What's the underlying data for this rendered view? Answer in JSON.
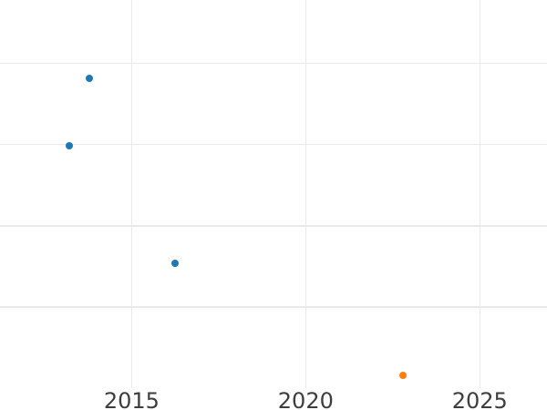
{
  "chart_data": {
    "type": "scatter",
    "title": "",
    "xlabel": "",
    "ylabel": "",
    "xlim": [
      2011.22,
      2026.93
    ],
    "ylim": [
      0,
      4.78
    ],
    "x_ticks": [
      2015,
      2020,
      2025
    ],
    "x_tick_labels": [
      "2015",
      "2020",
      "2025"
    ],
    "y_ticks": [],
    "y_tick_labels": [],
    "y_gridlines": [
      1,
      2,
      3,
      4
    ],
    "y_unit": "gridline intervals (no y tick labels visible)",
    "grid": true,
    "legend": false,
    "marker_size_px": 8,
    "series": [
      {
        "name": "blue-series",
        "color": "#1f77b4",
        "points": [
          {
            "x": 2013.79,
            "y": 3.82
          },
          {
            "x": 2013.22,
            "y": 2.99
          },
          {
            "x": 2016.24,
            "y": 1.54
          }
        ]
      },
      {
        "name": "orange-series",
        "color": "#ff7f0e",
        "points": [
          {
            "x": 2022.79,
            "y": 0.16
          }
        ]
      }
    ],
    "colors": {
      "background": "#ffffff",
      "grid": "#e9e9e9",
      "tick_label": "#3d3d3d"
    }
  }
}
